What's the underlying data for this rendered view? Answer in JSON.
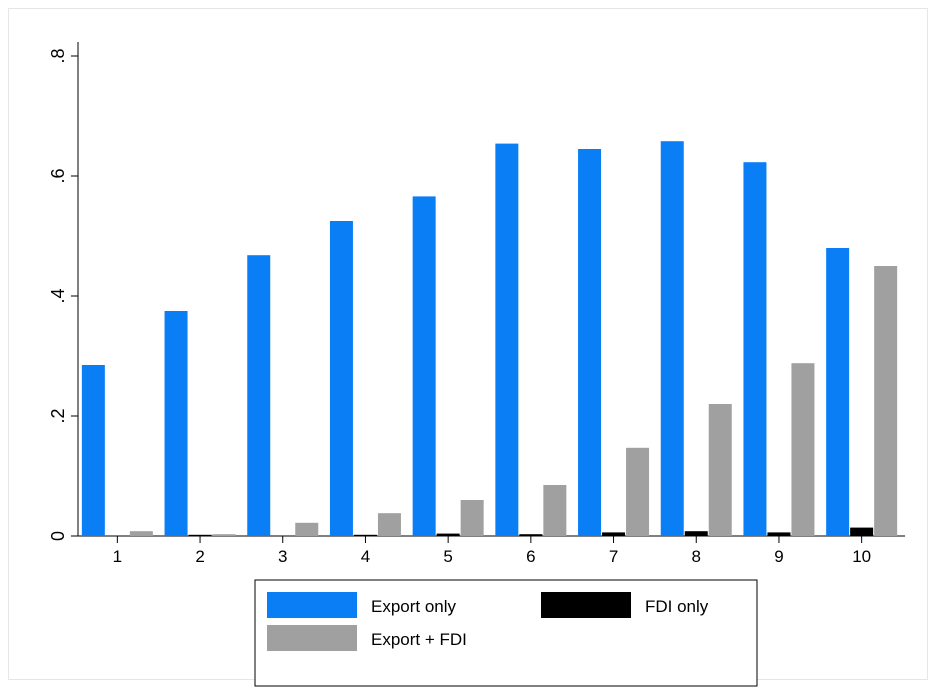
{
  "chart_data": {
    "type": "bar",
    "categories": [
      "1",
      "2",
      "3",
      "4",
      "5",
      "6",
      "7",
      "8",
      "9",
      "10"
    ],
    "series": [
      {
        "name": "Export only",
        "color": "#0a7ff5",
        "values": [
          0.285,
          0.375,
          0.468,
          0.525,
          0.566,
          0.654,
          0.645,
          0.658,
          0.623,
          0.48
        ]
      },
      {
        "name": "FDI only",
        "color": "#000000",
        "values": [
          0.0,
          0.002,
          0.0,
          0.002,
          0.004,
          0.003,
          0.006,
          0.008,
          0.006,
          0.014
        ]
      },
      {
        "name": "Export + FDI",
        "color": "#a0a0a0",
        "values": [
          0.008,
          0.003,
          0.022,
          0.038,
          0.06,
          0.085,
          0.147,
          0.22,
          0.288,
          0.45
        ]
      }
    ],
    "yticks": [
      {
        "value": 0,
        "label": "0"
      },
      {
        "value": 0.2,
        "label": ".2"
      },
      {
        "value": 0.4,
        "label": ".4"
      },
      {
        "value": 0.6,
        "label": ".6"
      },
      {
        "value": 0.8,
        "label": ".8"
      }
    ],
    "ylim": [
      0,
      0.8
    ],
    "title": "",
    "xlabel": "",
    "ylabel": "",
    "grid": false,
    "legend_position": "bottom"
  },
  "legend": {
    "items": [
      {
        "label": "Export only",
        "color": "#0a7ff5"
      },
      {
        "label": "FDI only",
        "color": "#000000"
      },
      {
        "label": "Export + FDI",
        "color": "#a0a0a0"
      }
    ]
  }
}
